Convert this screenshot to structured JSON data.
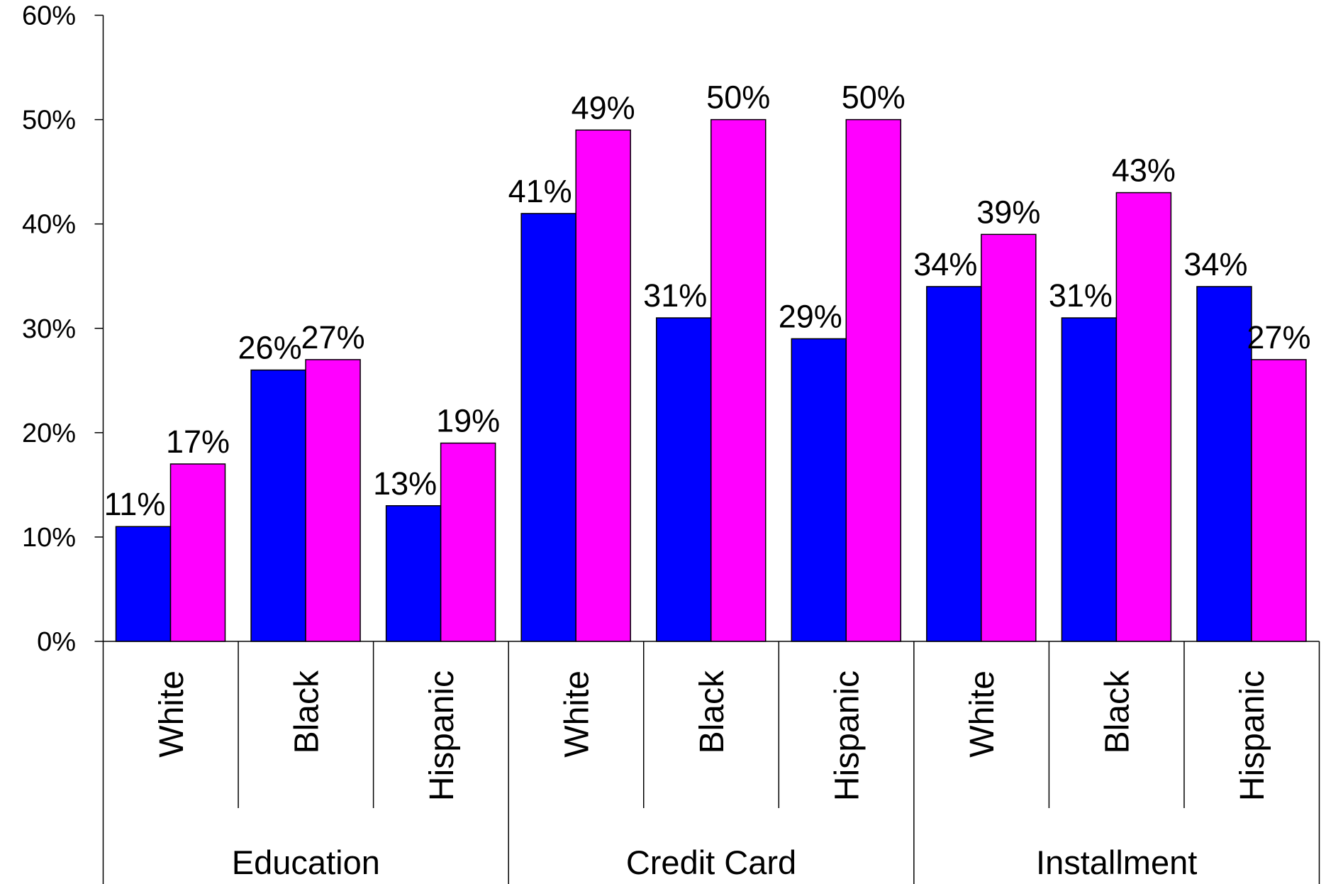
{
  "chart_data": {
    "type": "bar",
    "categories": [
      "White",
      "Black",
      "Hispanic",
      "White",
      "Black",
      "Hispanic",
      "White",
      "Black",
      "Hispanic"
    ],
    "category_groups": [
      "Education",
      "Credit Card",
      "Installment"
    ],
    "series": [
      {
        "color": "#0000ff",
        "values": [
          11,
          26,
          13,
          41,
          31,
          29,
          34,
          31,
          34
        ],
        "value_labels": [
          "11%",
          "26%",
          "13%",
          "41%",
          "31%",
          "29%",
          "34%",
          "31%",
          "34%"
        ]
      },
      {
        "color": "#ff00ff",
        "values": [
          17,
          27,
          19,
          49,
          50,
          50,
          39,
          43,
          27
        ],
        "value_labels": [
          "17%",
          "27%",
          "19%",
          "49%",
          "50%",
          "50%",
          "39%",
          "43%",
          "27%"
        ]
      }
    ],
    "ylim": [
      0,
      60
    ],
    "yticks": [
      {
        "value": 0,
        "label": "0%"
      },
      {
        "value": 10,
        "label": "10%"
      },
      {
        "value": 20,
        "label": "20%"
      },
      {
        "value": 30,
        "label": "30%"
      },
      {
        "value": 40,
        "label": "40%"
      },
      {
        "value": 50,
        "label": "50%"
      },
      {
        "value": 60,
        "label": "60%"
      }
    ],
    "grid": false
  }
}
